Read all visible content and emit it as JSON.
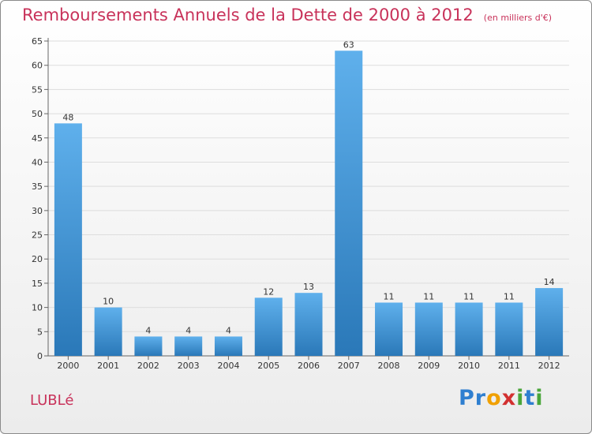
{
  "title": "Remboursements Annuels de la Dette de 2000 à 2012",
  "subtitle": "(en milliers d'€)",
  "commune": "LUBLé",
  "logo": {
    "letters": [
      "P",
      "r",
      "o",
      "x",
      "i",
      "t",
      "i"
    ],
    "colors": [
      "#2f7fd0",
      "#2f7fd0",
      "#f0a000",
      "#d23030",
      "#4aa63a",
      "#2f7fd0",
      "#4aa63a"
    ]
  },
  "colors": {
    "bar_top": "#5fb0ec",
    "bar_bottom": "#2a78b8",
    "title": "#c8325a",
    "grid": "#dddddd"
  },
  "chart_data": {
    "type": "bar",
    "title": "Remboursements Annuels de la Dette de 2000 à 2012",
    "subtitle": "(en milliers d'€)",
    "xlabel": "",
    "ylabel": "",
    "categories": [
      "2000",
      "2001",
      "2002",
      "2003",
      "2004",
      "2005",
      "2006",
      "2007",
      "2008",
      "2009",
      "2010",
      "2011",
      "2012"
    ],
    "values": [
      48,
      10,
      4,
      4,
      4,
      12,
      13,
      63,
      11,
      11,
      11,
      11,
      14
    ],
    "ylim": [
      0,
      65
    ],
    "yticks": [
      0,
      5,
      10,
      15,
      20,
      25,
      30,
      35,
      40,
      45,
      50,
      55,
      60,
      65
    ],
    "grid": true,
    "legend": "none"
  }
}
